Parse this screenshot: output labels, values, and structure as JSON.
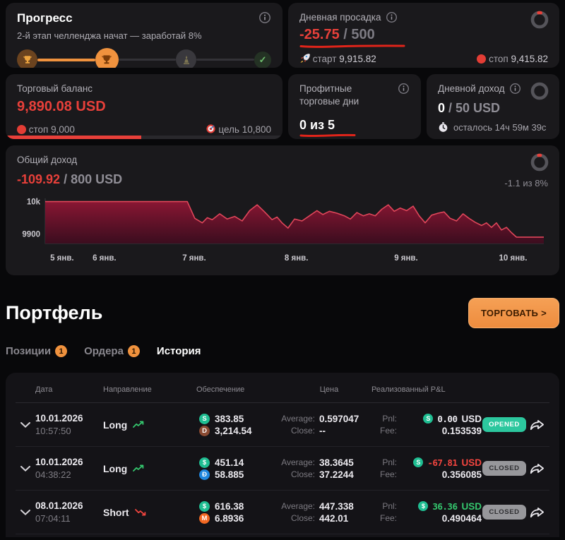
{
  "progress": {
    "title": "Прогресс",
    "subtitle": "2-й этап челленджа начат — заработай 8%",
    "milestones": [
      {
        "icon": "trophy",
        "state": "done"
      },
      {
        "icon": "trophy",
        "state": "active"
      },
      {
        "icon": "statue",
        "state": "pending"
      },
      {
        "icon": "check",
        "state": "check"
      }
    ]
  },
  "drawdown": {
    "title": "Дневная просадка",
    "value": "-25.75",
    "limit": "/ 500",
    "ring_pct": 5,
    "start_label": "старт",
    "start_value": "9,915.82",
    "stop_label": "стоп",
    "stop_value": "9,415.82"
  },
  "balance": {
    "title": "Торговый баланс",
    "value": "9,890.08 USD",
    "stop_label": "стоп",
    "stop_value": "9,000",
    "goal_label": "цель",
    "goal_value": "10,800",
    "progress_pct": 49
  },
  "profit_days": {
    "title": "Профитные торговые дни",
    "value": "0 из 5"
  },
  "daily_income": {
    "title": "Дневной доход",
    "value": "0",
    "limit": "/ 50 USD",
    "ring_pct": 0,
    "remaining": "осталось 14ч 59м 39с"
  },
  "total_income": {
    "title": "Общий доход",
    "value": "-109.92",
    "limit": "/ 800 USD",
    "ring_pct": 4,
    "pct_note": "-1.1 из 8%"
  },
  "chart_data": {
    "type": "area",
    "ylim": [
      9870,
      10010
    ],
    "yticks": [
      {
        "label": "10k",
        "value": 10000
      },
      {
        "label": "9900",
        "value": 9900
      }
    ],
    "xticks": [
      {
        "label": "5 янв.",
        "pos": 0.01
      },
      {
        "label": "6 янв.",
        "pos": 0.095
      },
      {
        "label": "7 янв.",
        "pos": 0.275
      },
      {
        "label": "8 янв.",
        "pos": 0.48
      },
      {
        "label": "9 янв.",
        "pos": 0.7
      },
      {
        "label": "10 янв.",
        "pos": 0.91
      }
    ],
    "line_color": "#e0465a",
    "fill_color": "#77102c",
    "points": [
      [
        0,
        10000
      ],
      [
        0.285,
        10000
      ],
      [
        0.3,
        9948
      ],
      [
        0.315,
        9934
      ],
      [
        0.325,
        9950
      ],
      [
        0.335,
        9944
      ],
      [
        0.35,
        9962
      ],
      [
        0.365,
        9946
      ],
      [
        0.38,
        9954
      ],
      [
        0.395,
        9940
      ],
      [
        0.41,
        9972
      ],
      [
        0.425,
        9990
      ],
      [
        0.44,
        9968
      ],
      [
        0.455,
        9944
      ],
      [
        0.465,
        9952
      ],
      [
        0.475,
        9934
      ],
      [
        0.487,
        9918
      ],
      [
        0.5,
        9946
      ],
      [
        0.515,
        9940
      ],
      [
        0.53,
        9956
      ],
      [
        0.545,
        9972
      ],
      [
        0.557,
        9960
      ],
      [
        0.57,
        9970
      ],
      [
        0.585,
        9964
      ],
      [
        0.6,
        9956
      ],
      [
        0.612,
        9946
      ],
      [
        0.625,
        9966
      ],
      [
        0.638,
        9956
      ],
      [
        0.65,
        9962
      ],
      [
        0.662,
        9956
      ],
      [
        0.675,
        9976
      ],
      [
        0.688,
        9990
      ],
      [
        0.7,
        9970
      ],
      [
        0.712,
        9980
      ],
      [
        0.725,
        9972
      ],
      [
        0.738,
        9986
      ],
      [
        0.75,
        9956
      ],
      [
        0.762,
        9934
      ],
      [
        0.775,
        9958
      ],
      [
        0.788,
        9964
      ],
      [
        0.8,
        9968
      ],
      [
        0.812,
        9948
      ],
      [
        0.825,
        9940
      ],
      [
        0.838,
        9962
      ],
      [
        0.85,
        9948
      ],
      [
        0.862,
        9936
      ],
      [
        0.875,
        9926
      ],
      [
        0.885,
        9934
      ],
      [
        0.895,
        9920
      ],
      [
        0.905,
        9934
      ],
      [
        0.915,
        9912
      ],
      [
        0.925,
        9920
      ],
      [
        0.935,
        9904
      ],
      [
        0.945,
        9890
      ],
      [
        1.0,
        9890
      ]
    ]
  },
  "portfolio": {
    "title": "Портфель",
    "trade_button": "ТОРГОВАТЬ >",
    "tabs": [
      {
        "label": "Позиции",
        "badge": "1",
        "active": false
      },
      {
        "label": "Ордера",
        "badge": "1",
        "active": false
      },
      {
        "label": "История",
        "badge": "",
        "active": true
      }
    ],
    "table": {
      "headers": [
        "Дата",
        "Направление",
        "Обеспечение",
        "Цена",
        "Реализованный P&L"
      ],
      "price_labels": {
        "average": "Average:",
        "close": "Close:"
      },
      "pnl_labels": {
        "pnl": "Pnl:",
        "fee": "Fee:",
        "currency": "USD"
      },
      "statuses": {
        "opened": "OPENED",
        "closed": "CLOSED"
      },
      "rows": [
        {
          "date": "10.01.2026",
          "time": "10:57:50",
          "direction": "Long",
          "trend": "up",
          "collateral": [
            {
              "glyph": "S",
              "color": "#1fbe92",
              "value": "383.85"
            },
            {
              "glyph": "D",
              "color": "#8a4a32",
              "value": "3,214.54"
            }
          ],
          "average": "0.597047",
          "close": "--",
          "pnl": {
            "glyph": "S",
            "coin_color": "#1fbe92",
            "value": "0.00",
            "tone": "neutral"
          },
          "fee": "0.153539",
          "status": "opened"
        },
        {
          "date": "10.01.2026",
          "time": "04:38:22",
          "direction": "Long",
          "trend": "up",
          "collateral": [
            {
              "glyph": "$",
              "color": "#1fbe92",
              "value": "451.14"
            },
            {
              "glyph": "Đ",
              "color": "#1f87df",
              "value": "58.885"
            }
          ],
          "average": "38.3645",
          "close": "37.2244",
          "pnl": {
            "glyph": "S",
            "coin_color": "#1fbe92",
            "value": "-67.81",
            "tone": "negative"
          },
          "fee": "0.356085",
          "status": "closed"
        },
        {
          "date": "08.01.2026",
          "time": "07:04:11",
          "direction": "Short",
          "trend": "down",
          "collateral": [
            {
              "glyph": "$",
              "color": "#1fbe92",
              "value": "616.38"
            },
            {
              "glyph": "M",
              "color": "#f26822",
              "value": "6.8936"
            }
          ],
          "average": "447.338",
          "close": "442.01",
          "pnl": {
            "glyph": "$",
            "coin_color": "#1fbe92",
            "value": "36.36",
            "tone": "positive"
          },
          "fee": "0.490464",
          "status": "closed"
        }
      ]
    }
  },
  "colors": {
    "accent_red": "#e8403a",
    "accent_orange": "#f0923e",
    "positive": "#35c96f",
    "negative": "#f3453f",
    "opened_badge": "#2cc79e",
    "closed_badge": "#97979b"
  }
}
